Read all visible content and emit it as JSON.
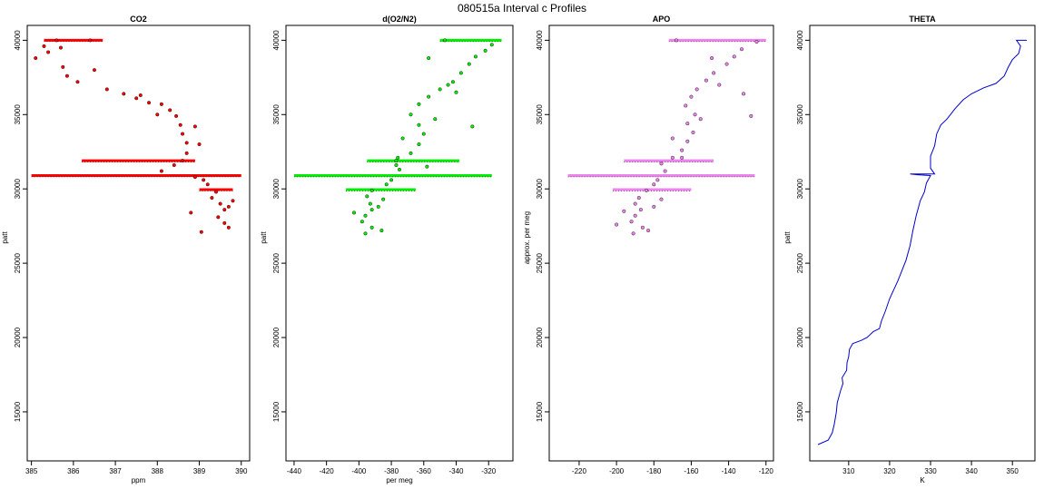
{
  "title": "080515a   Interval c Profiles",
  "chart_data": [
    {
      "type": "scatter",
      "title": "CO2",
      "xlabel": "ppm",
      "ylabel": "patt",
      "xlim": [
        384.9,
        390.2
      ],
      "ylim": [
        11700,
        41000
      ],
      "xticks": [
        385,
        386,
        387,
        388,
        389,
        390
      ],
      "yticks": [
        15000,
        20000,
        25000,
        30000,
        35000,
        40000
      ],
      "color": "#ff0000",
      "points": [
        [
          385.6,
          40000
        ],
        [
          385.1,
          38800
        ],
        [
          385.4,
          39200
        ],
        [
          385.7,
          39500
        ],
        [
          385.75,
          38200
        ],
        [
          385.85,
          37600
        ],
        [
          386.1,
          37200
        ],
        [
          386.8,
          36700
        ],
        [
          387.2,
          36400
        ],
        [
          387.5,
          36100
        ],
        [
          387.8,
          35800
        ],
        [
          388.1,
          35700
        ],
        [
          388.3,
          35300
        ],
        [
          388.45,
          34900
        ],
        [
          388.55,
          34300
        ],
        [
          388.6,
          33700
        ],
        [
          388.7,
          33100
        ],
        [
          388.7,
          32400
        ],
        [
          388.6,
          31900
        ],
        [
          388.4,
          31600
        ],
        [
          388.1,
          31200
        ],
        [
          388.9,
          30800
        ],
        [
          389.1,
          30600
        ],
        [
          389.2,
          30300
        ],
        [
          389.4,
          29800
        ],
        [
          389.3,
          29400
        ],
        [
          389.5,
          29000
        ],
        [
          389.6,
          28600
        ],
        [
          389.45,
          28100
        ],
        [
          389.6,
          27700
        ],
        [
          389.7,
          27400
        ],
        [
          389.05,
          27100
        ],
        [
          386.4,
          40000
        ],
        [
          385.3,
          39600
        ],
        [
          386.5,
          38000
        ],
        [
          387.6,
          36300
        ],
        [
          388.0,
          35000
        ],
        [
          388.9,
          34200
        ],
        [
          389.0,
          33000
        ],
        [
          389.7,
          28800
        ],
        [
          389.8,
          29200
        ],
        [
          388.8,
          28400
        ]
      ],
      "bands": [
        {
          "y": 40000,
          "x_from": 385.3,
          "x_to": 386.7
        },
        {
          "y": 31900,
          "x_from": 386.2,
          "x_to": 388.9
        },
        {
          "y": 30900,
          "x_from": 385.0,
          "x_to": 390.0
        },
        {
          "y": 29950,
          "x_from": 389.0,
          "x_to": 389.8
        }
      ]
    },
    {
      "type": "scatter",
      "title": "d(O2/N2)",
      "xlabel": "per meg",
      "ylabel": "patt",
      "xlim": [
        -445,
        -305
      ],
      "ylim": [
        11700,
        41000
      ],
      "xticks": [
        -440,
        -420,
        -400,
        -380,
        -360,
        -340,
        -320
      ],
      "yticks": [
        15000,
        20000,
        25000,
        30000,
        35000,
        40000
      ],
      "color": "#00ee00",
      "points": [
        [
          -347,
          40000
        ],
        [
          -318,
          39700
        ],
        [
          -322,
          39300
        ],
        [
          -328,
          38900
        ],
        [
          -332,
          38400
        ],
        [
          -337,
          37800
        ],
        [
          -342,
          37200
        ],
        [
          -350,
          36700
        ],
        [
          -357,
          36200
        ],
        [
          -363,
          35700
        ],
        [
          -368,
          35000
        ],
        [
          -363,
          34300
        ],
        [
          -360,
          33700
        ],
        [
          -363,
          33000
        ],
        [
          -368,
          32400
        ],
        [
          -377,
          31900
        ],
        [
          -377,
          31600
        ],
        [
          -375,
          31300
        ],
        [
          -380,
          30600
        ],
        [
          -383,
          30300
        ],
        [
          -392,
          29900
        ],
        [
          -395,
          29500
        ],
        [
          -393,
          29000
        ],
        [
          -392,
          28600
        ],
        [
          -396,
          28200
        ],
        [
          -398,
          27800
        ],
        [
          -392,
          27400
        ],
        [
          -386,
          27200
        ],
        [
          -396,
          27000
        ],
        [
          -357,
          38800
        ],
        [
          -345,
          37000
        ],
        [
          -353,
          34700
        ],
        [
          -373,
          33400
        ],
        [
          -376,
          32100
        ],
        [
          -388,
          28800
        ],
        [
          -385,
          29300
        ],
        [
          -340,
          36500
        ],
        [
          -330,
          34200
        ],
        [
          -358,
          31500
        ],
        [
          -403,
          28400
        ]
      ],
      "bands": [
        {
          "y": 40000,
          "x_from": -350,
          "x_to": -312
        },
        {
          "y": 31900,
          "x_from": -395,
          "x_to": -338
        },
        {
          "y": 30900,
          "x_from": -440,
          "x_to": -318
        },
        {
          "y": 29950,
          "x_from": -408,
          "x_to": -365
        }
      ]
    },
    {
      "type": "scatter",
      "title": "APO",
      "xlabel": "",
      "ylabel": "approx. per meg",
      "xlim": [
        -236,
        -116
      ],
      "ylim": [
        11700,
        41000
      ],
      "xticks": [
        -220,
        -200,
        -180,
        -160,
        -140,
        -120
      ],
      "yticks": [
        15000,
        20000,
        25000,
        30000,
        35000,
        40000
      ],
      "color": "#ee82ee",
      "points": [
        [
          -168,
          40000
        ],
        [
          -125,
          39900
        ],
        [
          -133,
          39400
        ],
        [
          -137,
          38900
        ],
        [
          -141,
          38400
        ],
        [
          -148,
          37800
        ],
        [
          -152,
          37300
        ],
        [
          -157,
          36700
        ],
        [
          -160,
          36200
        ],
        [
          -163,
          35600
        ],
        [
          -158,
          35000
        ],
        [
          -162,
          34400
        ],
        [
          -159,
          33800
        ],
        [
          -162,
          33200
        ],
        [
          -165,
          32600
        ],
        [
          -170,
          32100
        ],
        [
          -176,
          31700
        ],
        [
          -174,
          31200
        ],
        [
          -178,
          30600
        ],
        [
          -180,
          30300
        ],
        [
          -184,
          29900
        ],
        [
          -188,
          29400
        ],
        [
          -190,
          29000
        ],
        [
          -187,
          28600
        ],
        [
          -190,
          28200
        ],
        [
          -192,
          27800
        ],
        [
          -186,
          27400
        ],
        [
          -183,
          27200
        ],
        [
          -191,
          27000
        ],
        [
          -149,
          38800
        ],
        [
          -145,
          37000
        ],
        [
          -155,
          34700
        ],
        [
          -170,
          33400
        ],
        [
          -165,
          32100
        ],
        [
          -180,
          28800
        ],
        [
          -176,
          29300
        ],
        [
          -132,
          36400
        ],
        [
          -128,
          34900
        ],
        [
          -196,
          28500
        ],
        [
          -200,
          27600
        ]
      ],
      "bands": [
        {
          "y": 40000,
          "x_from": -172,
          "x_to": -120
        },
        {
          "y": 31900,
          "x_from": -196,
          "x_to": -148
        },
        {
          "y": 30900,
          "x_from": -226,
          "x_to": -126
        },
        {
          "y": 29950,
          "x_from": -202,
          "x_to": -160
        }
      ]
    },
    {
      "type": "line",
      "title": "THETA",
      "xlabel": "K",
      "ylabel": "patt",
      "xlim": [
        300.5,
        355.5
      ],
      "ylim": [
        11700,
        41000
      ],
      "xticks": [
        310,
        320,
        330,
        340,
        350
      ],
      "yticks": [
        15000,
        20000,
        25000,
        30000,
        35000,
        40000
      ],
      "color": "#0000cd",
      "points": [
        [
          302.5,
          12800
        ],
        [
          305.0,
          13100
        ],
        [
          306.0,
          13600
        ],
        [
          306.5,
          14200
        ],
        [
          307.0,
          15000
        ],
        [
          307.2,
          15600
        ],
        [
          308.0,
          16400
        ],
        [
          308.6,
          16900
        ],
        [
          308.4,
          17300
        ],
        [
          309.5,
          17800
        ],
        [
          309.6,
          18300
        ],
        [
          310.0,
          18700
        ],
        [
          310.2,
          19200
        ],
        [
          311.0,
          19600
        ],
        [
          313.0,
          19800
        ],
        [
          314.5,
          20000
        ],
        [
          316.0,
          20400
        ],
        [
          317.5,
          20600
        ],
        [
          318.0,
          21100
        ],
        [
          319.0,
          21800
        ],
        [
          320.0,
          22600
        ],
        [
          321.0,
          23200
        ],
        [
          322.0,
          23800
        ],
        [
          323.0,
          24500
        ],
        [
          324.0,
          25200
        ],
        [
          325.0,
          26200
        ],
        [
          325.7,
          27200
        ],
        [
          326.5,
          28200
        ],
        [
          327.5,
          29200
        ],
        [
          328.5,
          29800
        ],
        [
          329.0,
          30400
        ],
        [
          330.0,
          30900
        ],
        [
          326.8,
          30950
        ],
        [
          325.0,
          31000
        ],
        [
          327.5,
          31000
        ],
        [
          331.0,
          31000
        ],
        [
          330.0,
          31400
        ],
        [
          330.0,
          32200
        ],
        [
          331.0,
          32900
        ],
        [
          331.5,
          33700
        ],
        [
          332.5,
          34300
        ],
        [
          334.0,
          34700
        ],
        [
          336.0,
          35400
        ],
        [
          338.0,
          36000
        ],
        [
          340.0,
          36400
        ],
        [
          343.0,
          36800
        ],
        [
          346.0,
          37100
        ],
        [
          348.0,
          37600
        ],
        [
          349.0,
          38200
        ],
        [
          350.0,
          38700
        ],
        [
          351.5,
          39100
        ],
        [
          352.0,
          39600
        ],
        [
          351.0,
          40000
        ],
        [
          353.5,
          40000
        ]
      ]
    }
  ]
}
